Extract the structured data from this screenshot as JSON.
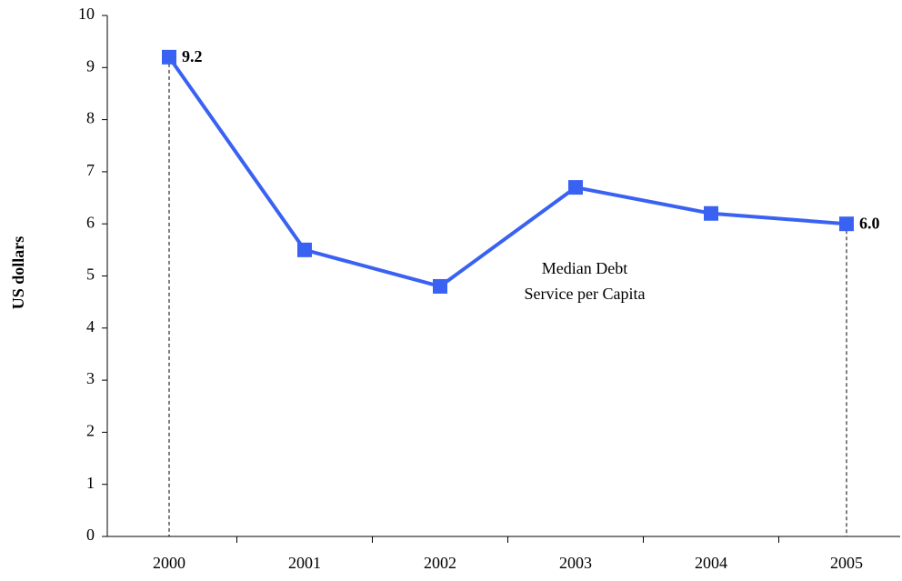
{
  "chart_data": {
    "type": "line",
    "y_label": "US dollars",
    "categories": [
      "2000",
      "2001",
      "2002",
      "2003",
      "2004",
      "2005"
    ],
    "series": [
      {
        "name": "Median Debt Service per Capita",
        "color": "#3a62f2",
        "values": [
          9.2,
          5.5,
          4.8,
          6.7,
          6.2,
          6.0
        ],
        "value_labels": [
          "9.2",
          null,
          null,
          null,
          null,
          "6.0"
        ]
      }
    ],
    "annotation": [
      "Median Debt",
      "Service per Capita"
    ],
    "ylim": [
      0,
      10
    ],
    "yticks": [
      0,
      1,
      2,
      3,
      4,
      5,
      6,
      7,
      8,
      9,
      10
    ],
    "grid": false
  }
}
